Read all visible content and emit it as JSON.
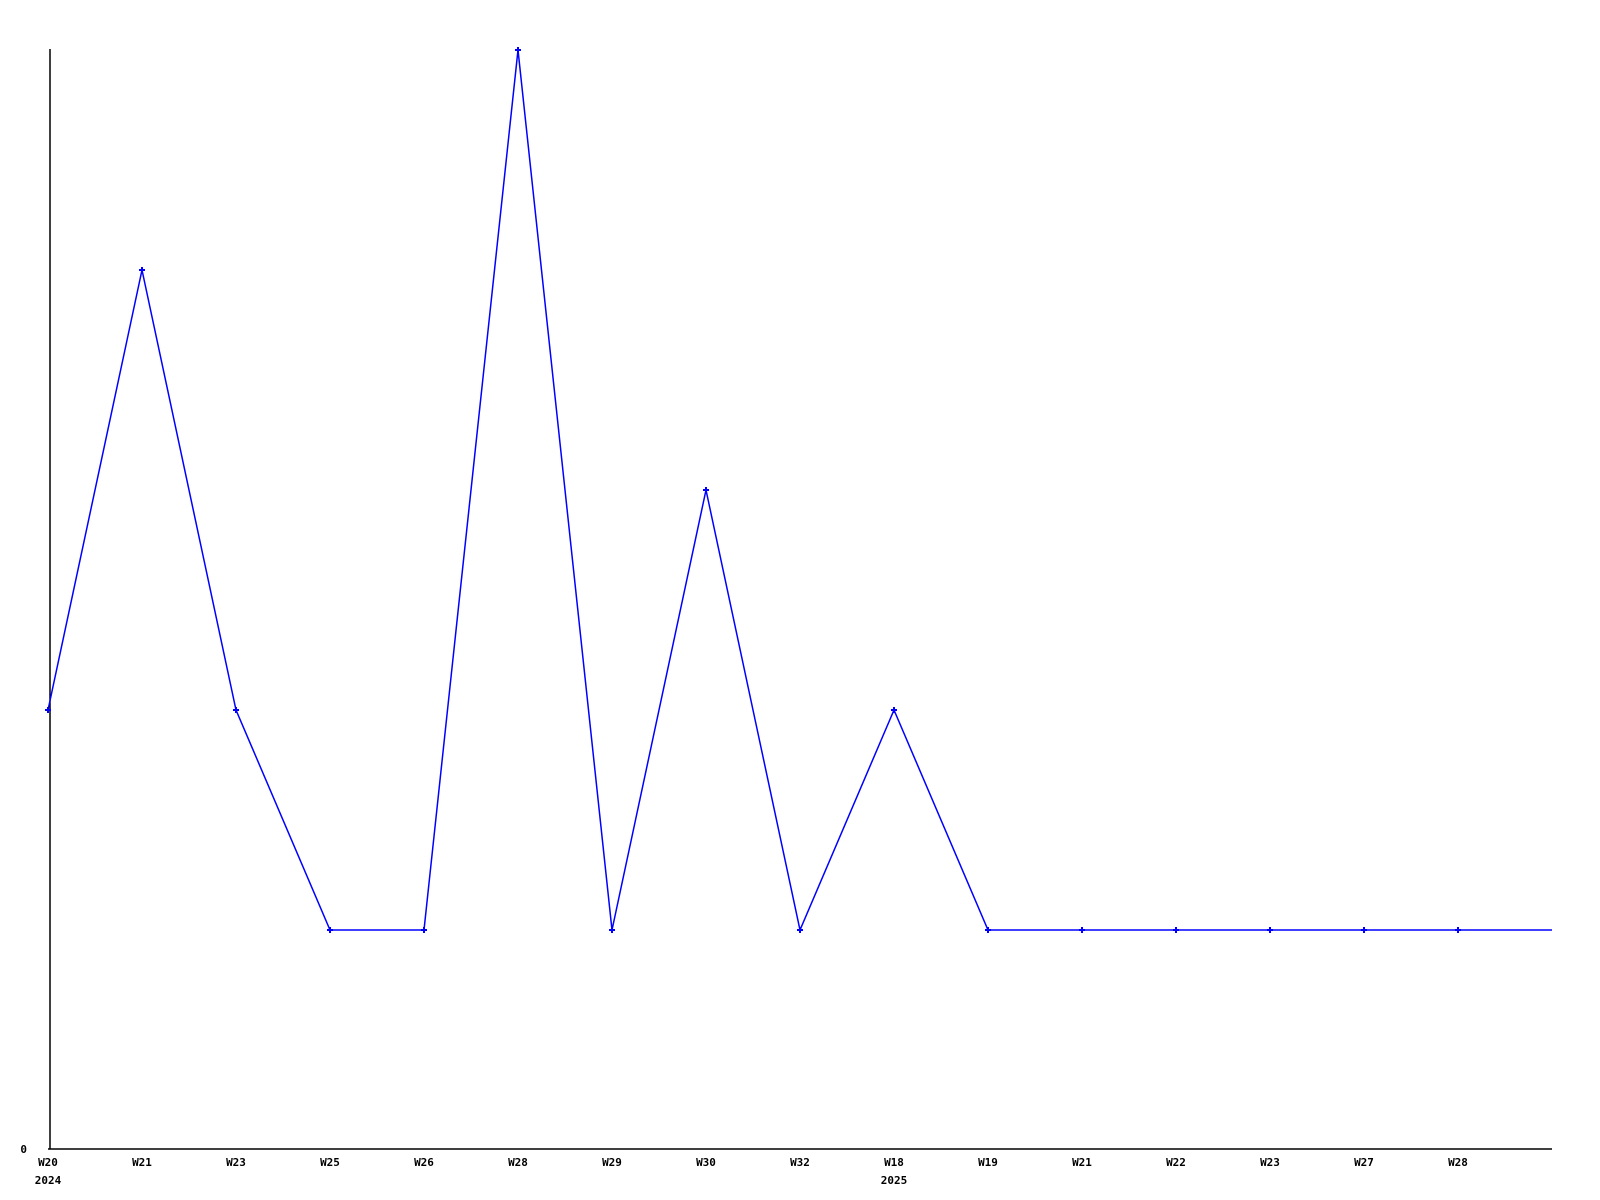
{
  "chart_data": {
    "type": "line",
    "title": "",
    "xlabel": "",
    "ylabel": "",
    "categories": [
      "W20 2024",
      "W21",
      "W23",
      "W25",
      "W26",
      "W28",
      "W29",
      "W30",
      "W32",
      "W18 2025",
      "W19",
      "W21",
      "W22",
      "W23",
      "W27",
      "W28"
    ],
    "x_labels": [
      {
        "week": "W20",
        "year": "2024"
      },
      {
        "week": "W21"
      },
      {
        "week": "W23"
      },
      {
        "week": "W25"
      },
      {
        "week": "W26"
      },
      {
        "week": "W28"
      },
      {
        "week": "W29"
      },
      {
        "week": "W30"
      },
      {
        "week": "W32"
      },
      {
        "week": "W18",
        "year": "2025"
      },
      {
        "week": "W19"
      },
      {
        "week": "W21"
      },
      {
        "week": "W22"
      },
      {
        "week": "W23"
      },
      {
        "week": "W27"
      },
      {
        "week": "W28"
      }
    ],
    "values": [
      2,
      4,
      2,
      1,
      1,
      5,
      1,
      3,
      1,
      2,
      1,
      1,
      1,
      1,
      1,
      1
    ],
    "trailing_value": 1,
    "y_tick_labels": [
      "0"
    ],
    "ylim": [
      0,
      5
    ],
    "grid": "off",
    "legend": "none",
    "marker": "plus",
    "line_color": "#0000ff",
    "axis_color": "#000000"
  }
}
